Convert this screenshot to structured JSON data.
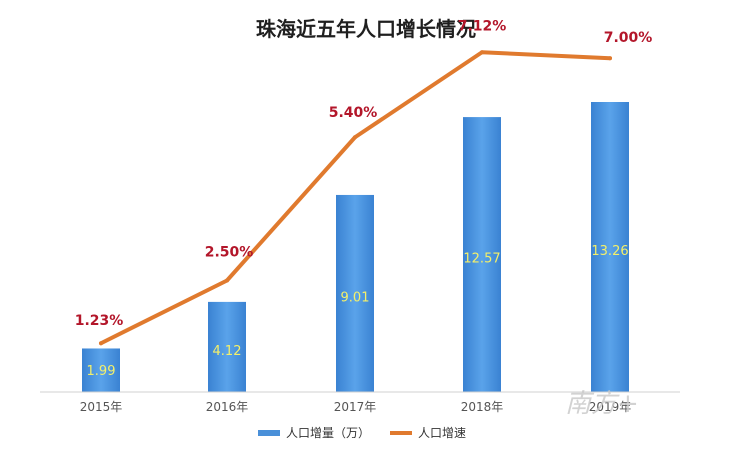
{
  "chart_data": {
    "type": "bar",
    "title": "珠海近五年人口增长情况",
    "categories": [
      "2015年",
      "2016年",
      "2017年",
      "2018年",
      "2019年"
    ],
    "series": [
      {
        "name": "人口增量（万）",
        "type": "bar",
        "color": "#4a90d9",
        "values": [
          1.99,
          4.12,
          9.01,
          12.57,
          13.26
        ],
        "labels": [
          "1.99",
          "4.12",
          "9.01",
          "12.57",
          "13.26"
        ]
      },
      {
        "name": "人口增速",
        "type": "line",
        "color": "#e07a2e",
        "values": [
          1.23,
          2.5,
          5.4,
          7.12,
          7.0
        ],
        "labels": [
          "1.23%",
          "2.50%",
          "5.40%",
          "7.12%",
          "7.00%"
        ]
      }
    ],
    "xlabel": "",
    "ylabel": "",
    "legend": "bottom",
    "grid": false
  },
  "watermark": "南方+"
}
